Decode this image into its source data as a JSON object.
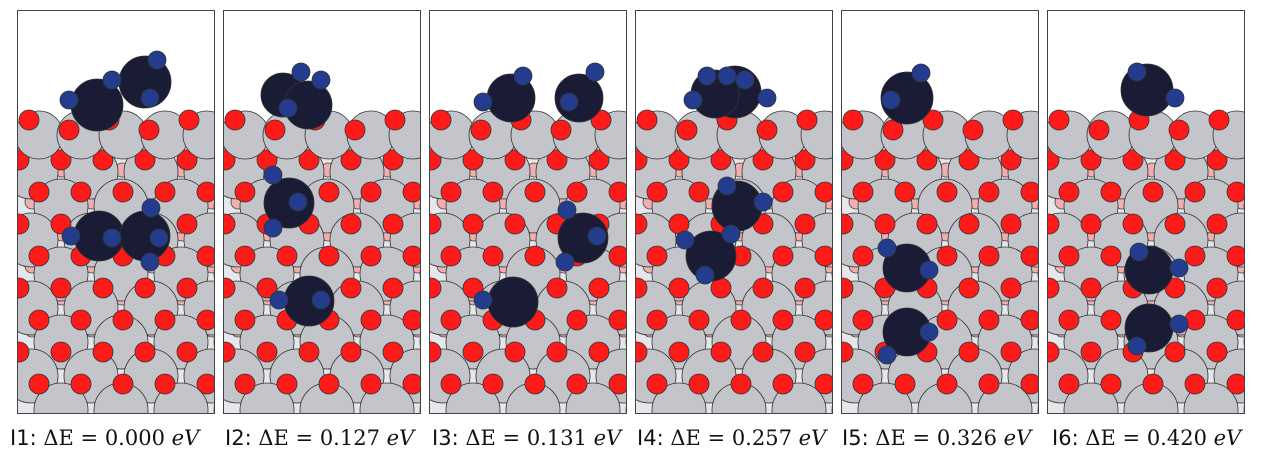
{
  "panels": [
    {
      "id": "I1",
      "delta_e": "0.000",
      "unit": "eV"
    },
    {
      "id": "I2",
      "delta_e": "0.127",
      "unit": "eV"
    },
    {
      "id": "I3",
      "delta_e": "0.131",
      "unit": "eV"
    },
    {
      "id": "I4",
      "delta_e": "0.257",
      "unit": "eV"
    },
    {
      "id": "I5",
      "delta_e": "0.326",
      "unit": "eV"
    },
    {
      "id": "I6",
      "delta_e": "0.420",
      "unit": "eV"
    }
  ],
  "labels": {
    "delta_symbol": "ΔE",
    "equals": "="
  },
  "colors": {
    "metal": "#c3c5ca",
    "oxygen": "#ff1a1a",
    "oxygen_faded": "#f4a9a9",
    "adsorbate_large": "#1a1c36",
    "adsorbate_small": "#233c8e",
    "frame": "#444444"
  }
}
